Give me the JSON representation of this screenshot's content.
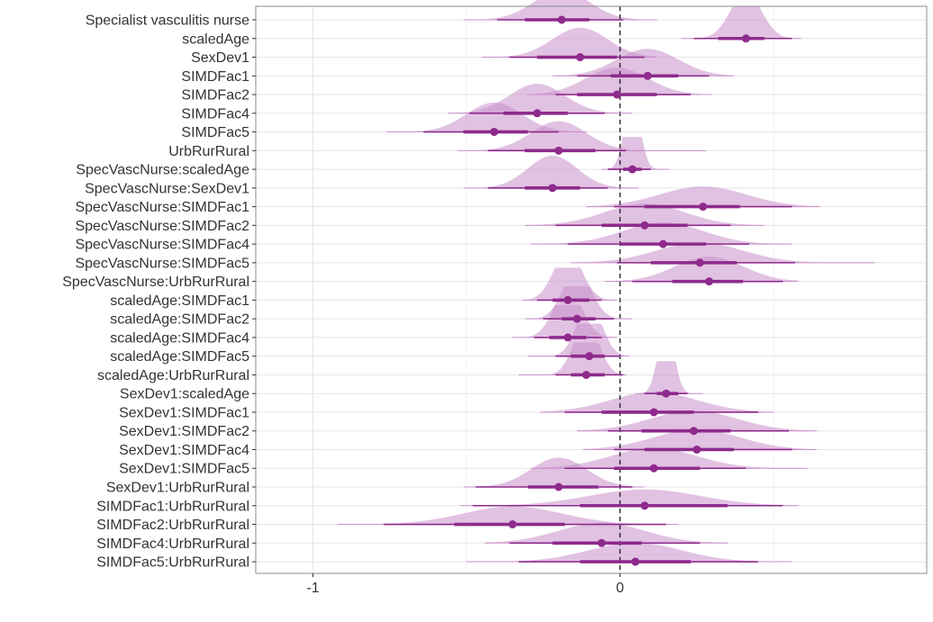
{
  "chart_data": {
    "type": "forest-halfeye",
    "title": "",
    "xlabel": "",
    "ylabel": "",
    "xlim": [
      -1.2,
      1.0
    ],
    "x_ticks": [
      -1,
      0
    ],
    "x_tick_labels": [
      "-1",
      "0"
    ],
    "reference_line": 0,
    "grid": true,
    "colors": {
      "density": "#c98fca",
      "interval": "#8e2a8c",
      "point": "#8e2a8c",
      "refline": "#222222",
      "grid_major": "#e5e5e5",
      "grid_minor": "#f3f3f3",
      "panel_border": "#8c8c8c"
    },
    "series": [
      {
        "label": "Specialist vasculitis nurse",
        "median": -0.19,
        "q66": [
          -0.31,
          -0.1
        ],
        "q95": [
          -0.4,
          0.01
        ],
        "range": [
          -0.51,
          0.12
        ],
        "spread": 0.09
      },
      {
        "label": "scaledAge",
        "median": 0.41,
        "q66": [
          0.32,
          0.47
        ],
        "q95": [
          0.24,
          0.56
        ],
        "range": [
          0.2,
          0.59
        ],
        "spread": 0.05
      },
      {
        "label": "SexDev1",
        "median": -0.13,
        "q66": [
          -0.27,
          -0.01
        ],
        "q95": [
          -0.36,
          0.08
        ],
        "range": [
          -0.45,
          0.12
        ],
        "spread": 0.09
      },
      {
        "label": "SIMDFac1",
        "median": 0.09,
        "q66": [
          -0.03,
          0.19
        ],
        "q95": [
          -0.14,
          0.29
        ],
        "range": [
          -0.22,
          0.37
        ],
        "spread": 0.1
      },
      {
        "label": "SIMDFac2",
        "median": -0.01,
        "q66": [
          -0.14,
          0.12
        ],
        "q95": [
          -0.21,
          0.23
        ],
        "range": [
          -0.3,
          0.3
        ],
        "spread": 0.1
      },
      {
        "label": "SIMDFac4",
        "median": -0.27,
        "q66": [
          -0.38,
          -0.17
        ],
        "q95": [
          -0.49,
          -0.05
        ],
        "range": [
          -0.56,
          0.04
        ],
        "spread": 0.09
      },
      {
        "label": "SIMDFac5",
        "median": -0.41,
        "q66": [
          -0.51,
          -0.3
        ],
        "q95": [
          -0.64,
          -0.2
        ],
        "range": [
          -0.76,
          -0.11
        ],
        "spread": 0.09
      },
      {
        "label": "UrbRurRural",
        "median": -0.2,
        "q66": [
          -0.31,
          -0.08
        ],
        "q95": [
          -0.43,
          0.02
        ],
        "range": [
          -0.53,
          0.28
        ],
        "spread": 0.09
      },
      {
        "label": "SpecVascNurse:scaledAge",
        "median": 0.04,
        "q66": [
          0.01,
          0.07
        ],
        "q95": [
          -0.04,
          0.1
        ],
        "range": [
          -0.06,
          0.16
        ],
        "spread": 0.025
      },
      {
        "label": "SpecVascNurse:SexDev1",
        "median": -0.22,
        "q66": [
          -0.31,
          -0.13
        ],
        "q95": [
          -0.43,
          -0.04
        ],
        "range": [
          -0.51,
          0.06
        ],
        "spread": 0.08
      },
      {
        "label": "SpecVascNurse:SIMDFac1",
        "median": 0.27,
        "q66": [
          0.08,
          0.39
        ],
        "q95": [
          -0.02,
          0.56
        ],
        "range": [
          -0.11,
          0.65
        ],
        "spread": 0.14
      },
      {
        "label": "SpecVascNurse:SIMDFac2",
        "median": 0.08,
        "q66": [
          -0.06,
          0.22
        ],
        "q95": [
          -0.21,
          0.36
        ],
        "range": [
          -0.31,
          0.47
        ],
        "spread": 0.13
      },
      {
        "label": "SpecVascNurse:SIMDFac4",
        "median": 0.14,
        "q66": [
          0.0,
          0.28
        ],
        "q95": [
          -0.17,
          0.42
        ],
        "range": [
          -0.29,
          0.56
        ],
        "spread": 0.13
      },
      {
        "label": "SpecVascNurse:SIMDFac5",
        "median": 0.26,
        "q66": [
          0.1,
          0.38
        ],
        "q95": [
          -0.01,
          0.57
        ],
        "range": [
          -0.16,
          0.83
        ],
        "spread": 0.14
      },
      {
        "label": "SpecVascNurse:UrbRurRural",
        "median": 0.29,
        "q66": [
          0.17,
          0.4
        ],
        "q95": [
          0.04,
          0.53
        ],
        "range": [
          -0.05,
          0.58
        ],
        "spread": 0.11
      },
      {
        "label": "scaledAge:SIMDFac1",
        "median": -0.17,
        "q66": [
          -0.22,
          -0.1
        ],
        "q95": [
          -0.27,
          -0.06
        ],
        "range": [
          -0.32,
          -0.01
        ],
        "spread": 0.045
      },
      {
        "label": "scaledAge:SIMDFac2",
        "median": -0.14,
        "q66": [
          -0.19,
          -0.08
        ],
        "q95": [
          -0.25,
          -0.02
        ],
        "range": [
          -0.31,
          0.04
        ],
        "spread": 0.045
      },
      {
        "label": "scaledAge:SIMDFac4",
        "median": -0.17,
        "q66": [
          -0.23,
          -0.11
        ],
        "q95": [
          -0.28,
          -0.06
        ],
        "range": [
          -0.35,
          -0.01
        ],
        "spread": 0.045
      },
      {
        "label": "scaledAge:SIMDFac5",
        "median": -0.1,
        "q66": [
          -0.16,
          -0.05
        ],
        "q95": [
          -0.21,
          0.0
        ],
        "range": [
          -0.3,
          0.03
        ],
        "spread": 0.04
      },
      {
        "label": "scaledAge:UrbRurRural",
        "median": -0.11,
        "q66": [
          -0.16,
          -0.05
        ],
        "q95": [
          -0.21,
          0.01
        ],
        "range": [
          -0.33,
          0.02
        ],
        "spread": 0.04
      },
      {
        "label": "SexDev1:scaledAge",
        "median": 0.15,
        "q66": [
          0.12,
          0.19
        ],
        "q95": [
          0.08,
          0.22
        ],
        "range": [
          0.05,
          0.27
        ],
        "spread": 0.025
      },
      {
        "label": "SexDev1:SIMDFac1",
        "median": 0.11,
        "q66": [
          -0.06,
          0.24
        ],
        "q95": [
          -0.18,
          0.45
        ],
        "range": [
          -0.26,
          0.5
        ],
        "spread": 0.14
      },
      {
        "label": "SexDev1:SIMDFac2",
        "median": 0.24,
        "q66": [
          0.07,
          0.36
        ],
        "q95": [
          -0.04,
          0.55
        ],
        "range": [
          -0.14,
          0.64
        ],
        "spread": 0.14
      },
      {
        "label": "SexDev1:SIMDFac4",
        "median": 0.25,
        "q66": [
          0.08,
          0.37
        ],
        "q95": [
          -0.02,
          0.56
        ],
        "range": [
          -0.12,
          0.64
        ],
        "spread": 0.14
      },
      {
        "label": "SexDev1:SIMDFac5",
        "median": 0.11,
        "q66": [
          -0.02,
          0.26
        ],
        "q95": [
          -0.18,
          0.41
        ],
        "range": [
          -0.29,
          0.61
        ],
        "spread": 0.14
      },
      {
        "label": "SexDev1:UrbRurRural",
        "median": -0.2,
        "q66": [
          -0.3,
          -0.07
        ],
        "q95": [
          -0.47,
          0.04
        ],
        "range": [
          -0.51,
          0.08
        ],
        "spread": 0.09
      },
      {
        "label": "SIMDFac1:UrbRurRural",
        "median": 0.08,
        "q66": [
          -0.13,
          0.35
        ],
        "q95": [
          -0.48,
          0.53
        ],
        "range": [
          -0.52,
          0.58
        ],
        "spread": 0.18
      },
      {
        "label": "SIMDFac2:UrbRurRural",
        "median": -0.35,
        "q66": [
          -0.54,
          -0.18
        ],
        "q95": [
          -0.77,
          0.15
        ],
        "range": [
          -0.92,
          0.19
        ],
        "spread": 0.16
      },
      {
        "label": "SIMDFac4:UrbRurRural",
        "median": -0.06,
        "q66": [
          -0.22,
          0.07
        ],
        "q95": [
          -0.36,
          0.26
        ],
        "range": [
          -0.44,
          0.35
        ],
        "spread": 0.14
      },
      {
        "label": "SIMDFac5:UrbRurRural",
        "median": 0.05,
        "q66": [
          -0.13,
          0.23
        ],
        "q95": [
          -0.33,
          0.45
        ],
        "range": [
          -0.5,
          0.56
        ],
        "spread": 0.15
      }
    ]
  }
}
